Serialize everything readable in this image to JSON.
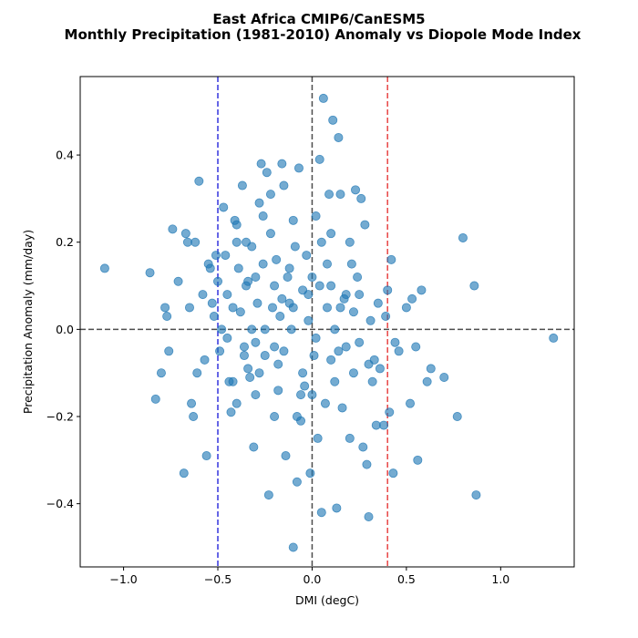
{
  "chart_data": {
    "type": "scatter",
    "title": "East Africa CMIP6/CanESM5",
    "subtitle": "Monthly Precipitation (1981-2010) Anomaly vs Diopole Mode Index",
    "xlabel": "DMI (degC)",
    "ylabel": "Precipitation Anomaly (mm/day)",
    "xlim": [
      -1.23,
      1.39
    ],
    "ylim": [
      -0.545,
      0.58
    ],
    "xticks": [
      -1.0,
      -0.5,
      0.0,
      0.5,
      1.0
    ],
    "xtick_labels": [
      "−1.0",
      "−0.5",
      "0.0",
      "0.5",
      "1.0"
    ],
    "yticks": [
      -0.4,
      -0.2,
      0.0,
      0.2,
      0.4
    ],
    "ytick_labels": [
      "−0.4",
      "−0.2",
      "0.0",
      "0.2",
      "0.4"
    ],
    "grid": false,
    "point_color": "#1f77b4",
    "reference_lines": [
      {
        "orientation": "vertical",
        "value": -0.5,
        "color": "#3333dd",
        "style": "dashed"
      },
      {
        "orientation": "vertical",
        "value": 0.4,
        "color": "#e84545",
        "style": "dashed"
      },
      {
        "orientation": "vertical",
        "value": 0.0,
        "color": "#4d4d4d",
        "style": "dashed"
      },
      {
        "orientation": "horizontal",
        "value": 0.0,
        "color": "#4d4d4d",
        "style": "dashed"
      }
    ],
    "points": [
      [
        -1.1,
        0.14
      ],
      [
        -0.86,
        0.13
      ],
      [
        -0.83,
        -0.16
      ],
      [
        -0.8,
        -0.1
      ],
      [
        -0.78,
        0.05
      ],
      [
        -0.77,
        0.03
      ],
      [
        -0.76,
        -0.05
      ],
      [
        -0.74,
        0.23
      ],
      [
        -0.71,
        0.11
      ],
      [
        -0.68,
        -0.33
      ],
      [
        -0.67,
        0.22
      ],
      [
        -0.66,
        0.2
      ],
      [
        -0.65,
        0.05
      ],
      [
        -0.64,
        -0.17
      ],
      [
        -0.63,
        -0.2
      ],
      [
        -0.62,
        0.2
      ],
      [
        -0.61,
        -0.1
      ],
      [
        -0.6,
        0.34
      ],
      [
        -0.58,
        0.08
      ],
      [
        -0.57,
        -0.07
      ],
      [
        -0.56,
        -0.29
      ],
      [
        -0.55,
        0.15
      ],
      [
        -0.54,
        0.14
      ],
      [
        -0.53,
        0.06
      ],
      [
        -0.52,
        0.03
      ],
      [
        -0.51,
        0.17
      ],
      [
        -0.5,
        0.11
      ],
      [
        -0.49,
        -0.05
      ],
      [
        -0.48,
        0.0
      ],
      [
        -0.47,
        0.28
      ],
      [
        -0.46,
        0.17
      ],
      [
        -0.45,
        0.08
      ],
      [
        -0.44,
        -0.12
      ],
      [
        -0.43,
        -0.19
      ],
      [
        -0.42,
        0.05
      ],
      [
        -0.41,
        0.25
      ],
      [
        -0.4,
        0.24
      ],
      [
        -0.4,
        -0.17
      ],
      [
        -0.39,
        0.14
      ],
      [
        -0.38,
        0.04
      ],
      [
        -0.37,
        0.33
      ],
      [
        -0.36,
        -0.06
      ],
      [
        -0.35,
        0.1
      ],
      [
        -0.34,
        -0.09
      ],
      [
        -0.33,
        -0.11
      ],
      [
        -0.32,
        0.19
      ],
      [
        -0.31,
        -0.27
      ],
      [
        -0.3,
        -0.03
      ],
      [
        -0.29,
        0.06
      ],
      [
        -0.28,
        0.29
      ],
      [
        -0.27,
        0.38
      ],
      [
        -0.26,
        0.15
      ],
      [
        -0.25,
        -0.06
      ],
      [
        -0.24,
        0.36
      ],
      [
        -0.23,
        -0.38
      ],
      [
        -0.22,
        0.31
      ],
      [
        -0.21,
        0.05
      ],
      [
        -0.2,
        -0.04
      ],
      [
        -0.19,
        0.16
      ],
      [
        -0.18,
        -0.14
      ],
      [
        -0.17,
        0.03
      ],
      [
        -0.16,
        0.38
      ],
      [
        -0.15,
        0.33
      ],
      [
        -0.14,
        -0.29
      ],
      [
        -0.13,
        0.12
      ],
      [
        -0.12,
        0.06
      ],
      [
        -0.11,
        0.0
      ],
      [
        -0.1,
        -0.5
      ],
      [
        -0.09,
        0.19
      ],
      [
        -0.08,
        -0.35
      ],
      [
        -0.07,
        0.37
      ],
      [
        -0.06,
        -0.21
      ],
      [
        -0.05,
        0.09
      ],
      [
        -0.04,
        -0.13
      ],
      [
        -0.03,
        0.17
      ],
      [
        -0.02,
        0.02
      ],
      [
        -0.01,
        -0.33
      ],
      [
        0.0,
        0.12
      ],
      [
        0.01,
        -0.06
      ],
      [
        0.02,
        0.26
      ],
      [
        0.03,
        -0.25
      ],
      [
        0.04,
        0.39
      ],
      [
        0.05,
        -0.42
      ],
      [
        0.06,
        0.53
      ],
      [
        0.07,
        -0.17
      ],
      [
        0.08,
        0.05
      ],
      [
        0.09,
        0.31
      ],
      [
        0.1,
        -0.07
      ],
      [
        0.11,
        0.48
      ],
      [
        0.12,
        0.0
      ],
      [
        0.13,
        -0.41
      ],
      [
        0.14,
        0.44
      ],
      [
        0.15,
        0.31
      ],
      [
        0.16,
        -0.18
      ],
      [
        0.17,
        0.07
      ],
      [
        0.18,
        -0.04
      ],
      [
        0.2,
        0.2
      ],
      [
        0.21,
        0.15
      ],
      [
        0.22,
        -0.1
      ],
      [
        0.23,
        0.32
      ],
      [
        0.24,
        0.12
      ],
      [
        0.25,
        -0.03
      ],
      [
        0.26,
        0.3
      ],
      [
        0.27,
        -0.27
      ],
      [
        0.28,
        0.24
      ],
      [
        0.29,
        -0.31
      ],
      [
        0.3,
        -0.43
      ],
      [
        0.31,
        0.02
      ],
      [
        0.32,
        -0.12
      ],
      [
        0.33,
        -0.07
      ],
      [
        0.34,
        -0.22
      ],
      [
        0.35,
        0.06
      ],
      [
        0.36,
        -0.09
      ],
      [
        0.38,
        -0.22
      ],
      [
        0.39,
        0.03
      ],
      [
        0.4,
        0.09
      ],
      [
        0.41,
        -0.19
      ],
      [
        0.42,
        0.16
      ],
      [
        0.43,
        -0.33
      ],
      [
        0.44,
        -0.03
      ],
      [
        0.46,
        -0.05
      ],
      [
        0.5,
        0.05
      ],
      [
        0.52,
        -0.17
      ],
      [
        0.53,
        0.07
      ],
      [
        0.55,
        -0.04
      ],
      [
        0.56,
        -0.3
      ],
      [
        0.58,
        0.09
      ],
      [
        0.61,
        -0.12
      ],
      [
        0.63,
        -0.09
      ],
      [
        0.7,
        -0.11
      ],
      [
        0.77,
        -0.2
      ],
      [
        0.8,
        0.21
      ],
      [
        0.86,
        0.1
      ],
      [
        0.87,
        -0.38
      ],
      [
        1.28,
        -0.02
      ],
      [
        -0.35,
        0.2
      ],
      [
        -0.3,
        0.12
      ],
      [
        -0.25,
        0.0
      ],
      [
        -0.2,
        0.1
      ],
      [
        -0.15,
        -0.05
      ],
      [
        -0.1,
        0.05
      ],
      [
        -0.05,
        -0.1
      ],
      [
        0.05,
        0.2
      ],
      [
        0.1,
        0.1
      ],
      [
        0.15,
        0.05
      ],
      [
        -0.3,
        -0.15
      ],
      [
        -0.2,
        -0.2
      ],
      [
        -0.1,
        0.25
      ],
      [
        0.0,
        -0.15
      ],
      [
        0.1,
        0.22
      ],
      [
        0.2,
        -0.25
      ],
      [
        -0.4,
        0.2
      ],
      [
        -0.45,
        -0.02
      ],
      [
        0.25,
        0.08
      ],
      [
        0.3,
        -0.08
      ],
      [
        -0.32,
        0.0
      ],
      [
        -0.28,
        -0.1
      ],
      [
        -0.22,
        0.22
      ],
      [
        -0.18,
        -0.08
      ],
      [
        -0.12,
        0.14
      ],
      [
        -0.08,
        -0.2
      ],
      [
        -0.02,
        0.08
      ],
      [
        0.02,
        -0.02
      ],
      [
        0.08,
        0.15
      ],
      [
        0.12,
        -0.12
      ],
      [
        0.18,
        0.08
      ],
      [
        -0.36,
        -0.04
      ],
      [
        -0.26,
        0.26
      ],
      [
        -0.16,
        0.07
      ],
      [
        -0.06,
        -0.15
      ],
      [
        0.04,
        0.1
      ],
      [
        0.14,
        -0.05
      ],
      [
        0.22,
        0.04
      ],
      [
        -0.42,
        -0.12
      ],
      [
        -0.34,
        0.11
      ]
    ]
  }
}
